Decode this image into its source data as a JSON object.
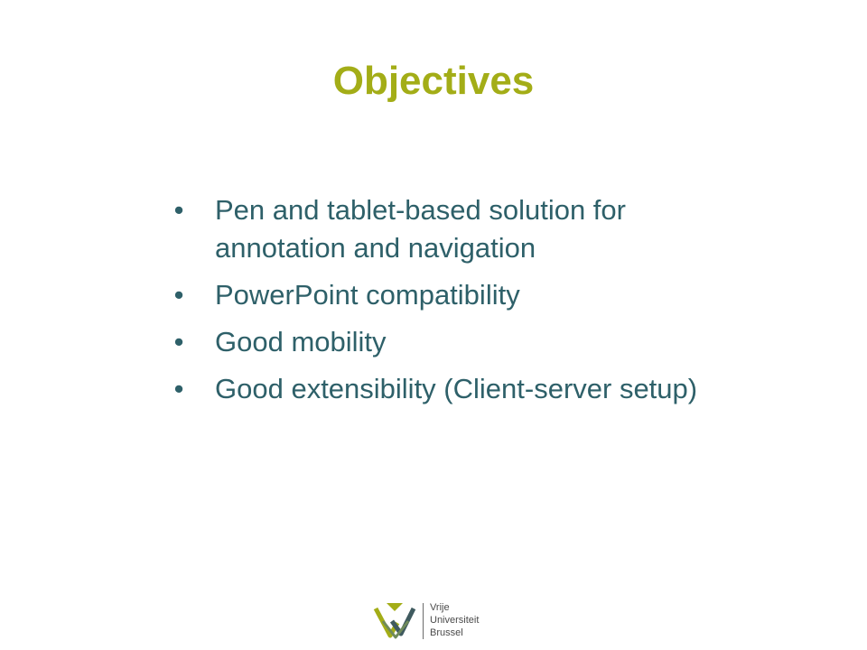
{
  "slide": {
    "title": "Objectives",
    "bullets": [
      "Pen and tablet-based solution for annotation and navigation",
      "PowerPoint compatibility",
      "Good mobility",
      "Good extensibility (Client-server setup)"
    ],
    "bullet_glyph": "•"
  },
  "footer": {
    "logo_lines": [
      "Vrije",
      "Universiteit",
      "Brussel"
    ]
  },
  "colors": {
    "title": "#a3ad17",
    "body": "#2e6069",
    "logo_green": "#a3ad17",
    "logo_dark": "#3f5a5f"
  }
}
